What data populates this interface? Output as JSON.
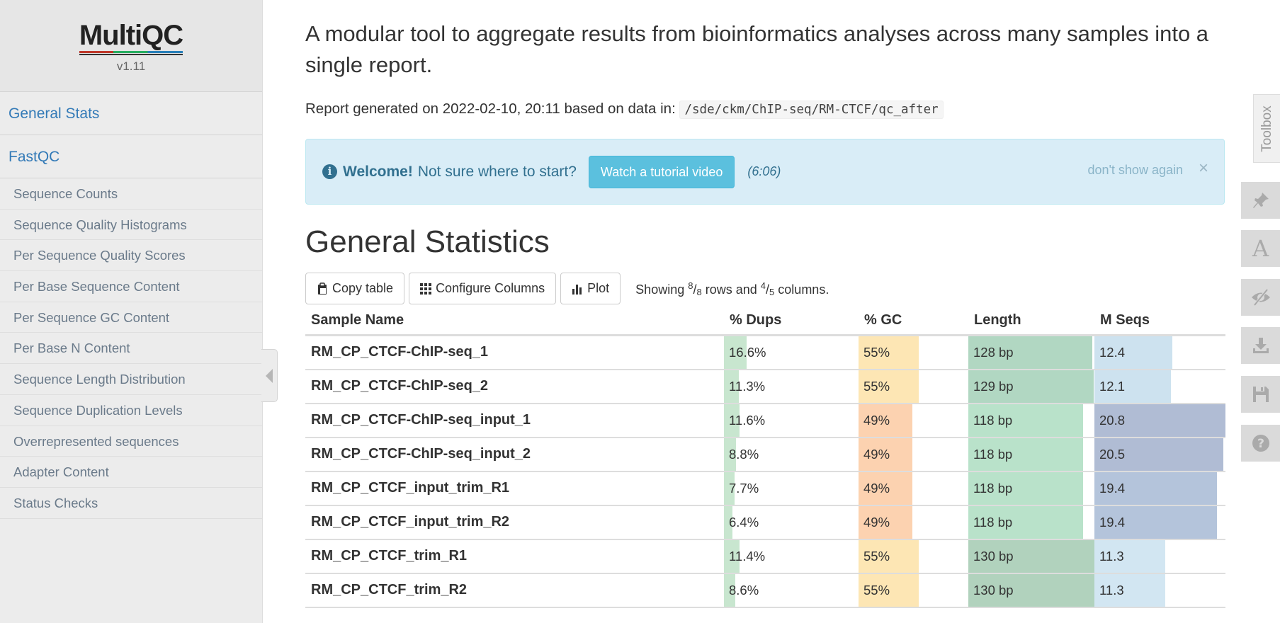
{
  "app": {
    "logo": "MultiQC",
    "version": "v1.11"
  },
  "sidebar": {
    "top_items": [
      {
        "label": "General Stats"
      },
      {
        "label": "FastQC"
      }
    ],
    "sub_items": [
      {
        "label": "Sequence Counts"
      },
      {
        "label": "Sequence Quality Histograms"
      },
      {
        "label": "Per Sequence Quality Scores"
      },
      {
        "label": "Per Base Sequence Content"
      },
      {
        "label": "Per Sequence GC Content"
      },
      {
        "label": "Per Base N Content"
      },
      {
        "label": "Sequence Length Distribution"
      },
      {
        "label": "Sequence Duplication Levels"
      },
      {
        "label": "Overrepresented sequences"
      },
      {
        "label": "Adapter Content"
      },
      {
        "label": "Status Checks"
      }
    ]
  },
  "intro": {
    "text": "A modular tool to aggregate results from bioinformatics analyses across many samples into a single report.",
    "report_prefix": "Report generated on 2022-02-10, 20:11 based on data in:",
    "report_path": "/sde/ckm/ChIP-seq/RM-CTCF/qc_after"
  },
  "welcome": {
    "strong": "Welcome!",
    "text": "Not sure where to start?",
    "button": "Watch a tutorial video",
    "duration": "(6:06)",
    "dont_show": "don't show again",
    "close": "×"
  },
  "general_stats": {
    "title": "General Statistics",
    "copy_label": "Copy table",
    "configure_label": "Configure Columns",
    "plot_label": "Plot",
    "showing_prefix": "Showing",
    "rows_shown": "8",
    "rows_total": "8",
    "rows_and": "rows and",
    "cols_shown": "4",
    "cols_total": "5",
    "cols_suffix": "columns.",
    "headers": [
      "Sample Name",
      "% Dups",
      "% GC",
      "Length",
      "M Seqs"
    ],
    "rows": [
      {
        "name": "RM_CP_CTCF-ChIP-seq_1",
        "dups": "16.6%",
        "gc": "55%",
        "length": "128 bp",
        "mseqs": "12.4",
        "dups_frac": 0.166,
        "gc_frac": 0.55,
        "len_frac": 0.985,
        "seq_frac": 0.596,
        "gc_color": "#fde6b4",
        "len_color": "#b1d7c2",
        "seq_color": "#cde2ef"
      },
      {
        "name": "RM_CP_CTCF-ChIP-seq_2",
        "dups": "11.3%",
        "gc": "55%",
        "length": "129 bp",
        "mseqs": "12.1",
        "dups_frac": 0.113,
        "gc_frac": 0.55,
        "len_frac": 0.992,
        "seq_frac": 0.582,
        "gc_color": "#fde6b4",
        "len_color": "#b1d7c2",
        "seq_color": "#cde2ef"
      },
      {
        "name": "RM_CP_CTCF-ChIP-seq_input_1",
        "dups": "11.6%",
        "gc": "49%",
        "length": "118 bp",
        "mseqs": "20.8",
        "dups_frac": 0.116,
        "gc_frac": 0.49,
        "len_frac": 0.908,
        "seq_frac": 1.0,
        "gc_color": "#fcd2b0",
        "len_color": "#b9e2ca",
        "seq_color": "#b0bcd4"
      },
      {
        "name": "RM_CP_CTCF-ChIP-seq_input_2",
        "dups": "8.8%",
        "gc": "49%",
        "length": "118 bp",
        "mseqs": "20.5",
        "dups_frac": 0.088,
        "gc_frac": 0.49,
        "len_frac": 0.908,
        "seq_frac": 0.986,
        "gc_color": "#fcd2b0",
        "len_color": "#b9e2ca",
        "seq_color": "#b0bcd4"
      },
      {
        "name": "RM_CP_CTCF_input_trim_R1",
        "dups": "7.7%",
        "gc": "49%",
        "length": "118 bp",
        "mseqs": "19.4",
        "dups_frac": 0.077,
        "gc_frac": 0.49,
        "len_frac": 0.908,
        "seq_frac": 0.933,
        "gc_color": "#fcd2b0",
        "len_color": "#b9e2ca",
        "seq_color": "#b4c4db"
      },
      {
        "name": "RM_CP_CTCF_input_trim_R2",
        "dups": "6.4%",
        "gc": "49%",
        "length": "118 bp",
        "mseqs": "19.4",
        "dups_frac": 0.064,
        "gc_frac": 0.49,
        "len_frac": 0.908,
        "seq_frac": 0.933,
        "gc_color": "#fcd2b0",
        "len_color": "#b9e2ca",
        "seq_color": "#b4c4db"
      },
      {
        "name": "RM_CP_CTCF_trim_R1",
        "dups": "11.4%",
        "gc": "55%",
        "length": "130 bp",
        "mseqs": "11.3",
        "dups_frac": 0.114,
        "gc_frac": 0.55,
        "len_frac": 1.0,
        "seq_frac": 0.543,
        "gc_color": "#fde6b4",
        "len_color": "#b1d2bd",
        "seq_color": "#d2e6f2"
      },
      {
        "name": "RM_CP_CTCF_trim_R2",
        "dups": "8.6%",
        "gc": "55%",
        "length": "130 bp",
        "mseqs": "11.3",
        "dups_frac": 0.086,
        "gc_frac": 0.55,
        "len_frac": 1.0,
        "seq_frac": 0.543,
        "gc_color": "#fde6b4",
        "len_color": "#b1d2bd",
        "seq_color": "#d2e6f2"
      }
    ],
    "dups_color": "#c8e6cf"
  },
  "toolbox": {
    "label": "Toolbox",
    "buttons": [
      {
        "icon": "pin-icon"
      },
      {
        "icon": "font-icon"
      },
      {
        "icon": "eye-slash-icon"
      },
      {
        "icon": "download-icon"
      },
      {
        "icon": "save-icon"
      },
      {
        "icon": "help-icon"
      }
    ]
  }
}
